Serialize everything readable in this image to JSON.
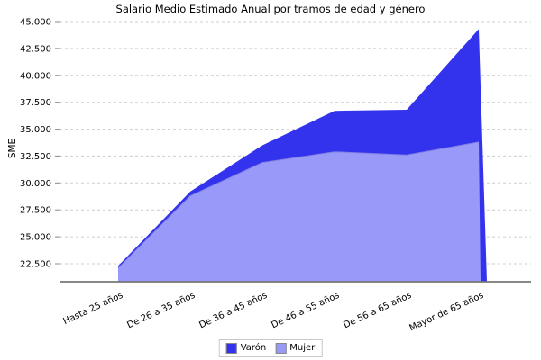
{
  "title": "Salario Medio Estimado Anual por tramos de edad y género",
  "y_axis": {
    "label": "SME"
  },
  "legend": {
    "items": [
      {
        "label": "Varón",
        "color": "#3333EE"
      },
      {
        "label": "Mujer",
        "color": "#9999FA"
      }
    ]
  },
  "colors": {
    "varon": "#3333EE",
    "mujer": "#9999FA",
    "mujer_edge": "#8080E0",
    "grid": "#cccccc",
    "axis": "#777777",
    "tick": "#888888"
  },
  "chart_data": {
    "type": "area",
    "title": "Salario Medio Estimado Anual por tramos de edad y género",
    "xlabel": "",
    "ylabel": "SME",
    "categories": [
      "Hasta 25 años",
      "De 26 a 35 años",
      "De 36 a 45 años",
      "De 46 a 55 años",
      "De 56 a 65 años",
      "Mayor de 65 años"
    ],
    "series": [
      {
        "name": "Varón",
        "color": "#3333EE",
        "values": [
          22300,
          29200,
          33500,
          36700,
          36800,
          44300
        ]
      },
      {
        "name": "Mujer",
        "color": "#9999FA",
        "values": [
          22100,
          28800,
          31900,
          32900,
          32600,
          33800
        ]
      }
    ],
    "ylim": [
      20800,
      45000
    ],
    "yticks": [
      45000,
      42500,
      40000,
      37500,
      35000,
      32500,
      30000,
      27500,
      25000,
      22500
    ],
    "ytick_labels": [
      "45.000",
      "42.500",
      "40.000",
      "37.500",
      "35.000",
      "32.500",
      "30.000",
      "27.500",
      "25.000",
      "22.500"
    ],
    "grid": true,
    "legend_position": "bottom"
  }
}
